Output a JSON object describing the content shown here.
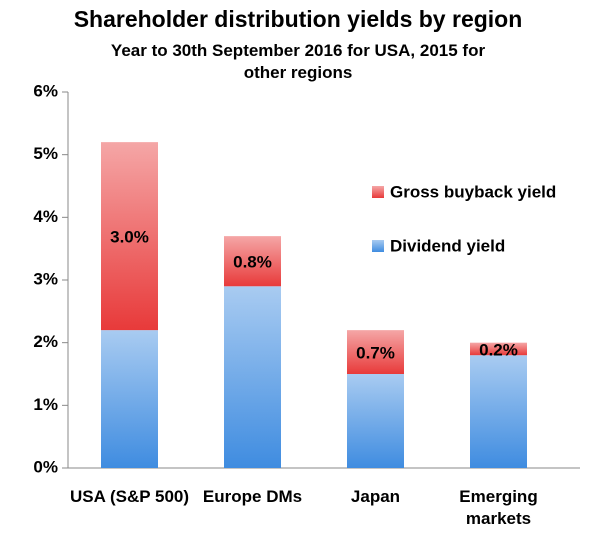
{
  "chart_data": {
    "type": "stacked_bar",
    "title": "Shareholder distribution yields by region",
    "subtitle": "Year to 30th September 2016 for USA, 2015 for other regions",
    "categories": [
      "USA (S&P 500)",
      "Europe DMs",
      "Japan",
      "Emerging markets"
    ],
    "series": [
      {
        "name": "Dividend yield",
        "color": "#3f8ce0",
        "values": [
          2.2,
          2.9,
          1.5,
          1.8
        ]
      },
      {
        "name": "Gross buyback yield",
        "color": "#e83a3a",
        "values": [
          3.0,
          0.8,
          0.7,
          0.2
        ],
        "value_labels": [
          "3.0%",
          "0.8%",
          "0.7%",
          "0.2%"
        ]
      }
    ],
    "ylim": [
      0,
      6
    ],
    "yticks": [
      {
        "value": 0,
        "label": "0%"
      },
      {
        "value": 1,
        "label": "1%"
      },
      {
        "value": 2,
        "label": "2%"
      },
      {
        "value": 3,
        "label": "3%"
      },
      {
        "value": 4,
        "label": "4%"
      },
      {
        "value": 5,
        "label": "5%"
      },
      {
        "value": 6,
        "label": "6%"
      }
    ],
    "grid": false,
    "legend": "right"
  }
}
